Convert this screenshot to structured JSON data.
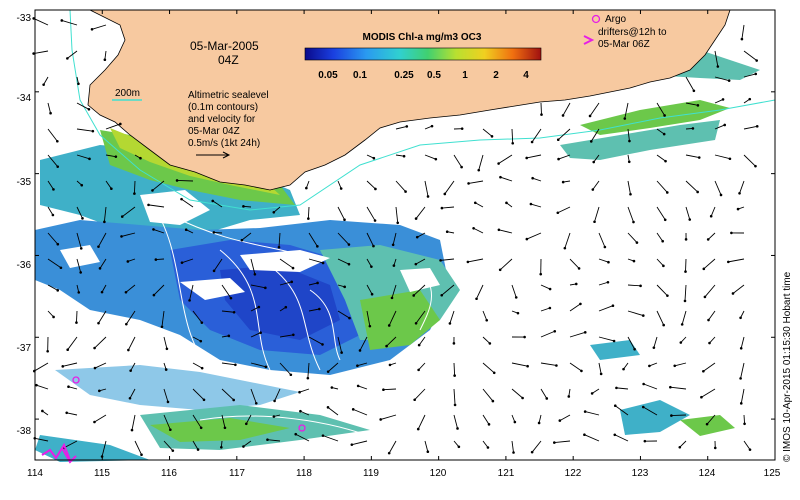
{
  "map": {
    "date_line1": "05-Mar-2005",
    "date_line2": "04Z",
    "colorbar_title": "MODIS Chl-a mg/m3 OC3",
    "colorbar_ticks": [
      "0.05",
      "0.1",
      "0.25",
      "0.5",
      "1",
      "2",
      "4"
    ],
    "contour_label": "200m",
    "sealevel_lines": [
      "Altimetric sealevel",
      "(0.1m contours)",
      "and velocity for",
      "05-Mar 04Z",
      "0.5m/s (1kt 24h)"
    ],
    "argo_lines": [
      "Argo",
      "drifters@12h to",
      "05-Mar 06Z"
    ],
    "credit": "© IMOS 10-Apr-2015 01:15:30 Hobart time",
    "x_ticks": [
      "114",
      "115",
      "116",
      "117",
      "118",
      "119",
      "120",
      "121",
      "122",
      "123",
      "124",
      "125"
    ],
    "y_ticks": [
      "-33",
      "-34",
      "-35",
      "-36",
      "-37",
      "-38"
    ],
    "lon_range": [
      114,
      125
    ],
    "lat_range": [
      -38.5,
      -33
    ],
    "colors": {
      "land": "#f7c9a0",
      "contour_200m": "#40e0d0",
      "argo": "#e61ee6",
      "vector": "#000000",
      "sealevel_contour": "#ffffff"
    }
  }
}
